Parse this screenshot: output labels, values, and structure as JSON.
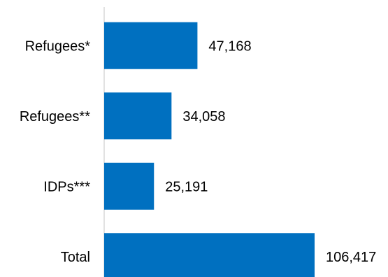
{
  "chart_data": {
    "type": "bar",
    "orientation": "horizontal",
    "categories": [
      "Refugees*",
      "Refugees**",
      "IDPs***",
      "Total"
    ],
    "value_labels": [
      "47,168",
      "34,058",
      "25,191",
      "106,417"
    ],
    "values": [
      47168,
      34058,
      25191,
      106417
    ],
    "xlim": [
      0,
      112000
    ],
    "grid": false,
    "bar_color": "#0070C0",
    "axis_color": "#D9D9D9"
  }
}
